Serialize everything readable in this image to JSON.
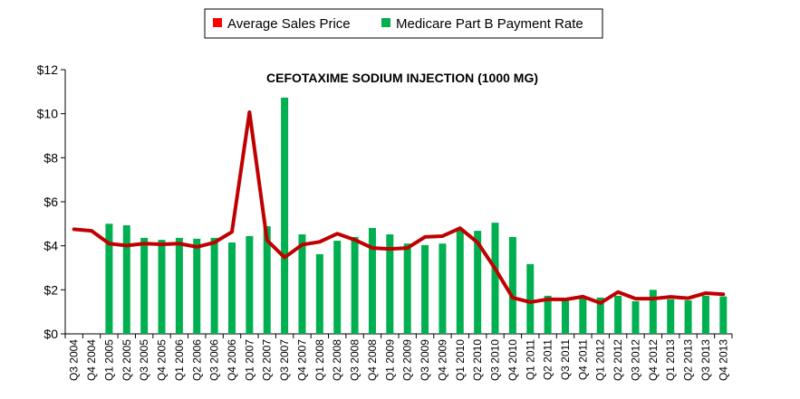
{
  "chart_data": {
    "type": "bar+line",
    "title": "CEFOTAXIME SODIUM INJECTION (1000 MG)",
    "xlabel": "",
    "ylabel": "",
    "ylim": [
      0,
      12
    ],
    "yticks": [
      "$0",
      "$2",
      "$4",
      "$6",
      "$8",
      "$10",
      "$12"
    ],
    "grid": false,
    "legend_position": "top",
    "categories": [
      "Q3 2004",
      "Q4 2004",
      "Q1 2005",
      "Q2 2005",
      "Q3 2005",
      "Q4 2005",
      "Q1 2006",
      "Q2 2006",
      "Q3 2006",
      "Q4 2006",
      "Q1 2007",
      "Q2 2007",
      "Q3 2007",
      "Q4 2007",
      "Q1 2008",
      "Q2 2008",
      "Q3 2008",
      "Q4 2008",
      "Q1 2009",
      "Q2 2009",
      "Q3 2009",
      "Q4 2009",
      "Q1 2010",
      "Q2 2010",
      "Q3 2010",
      "Q4 2010",
      "Q1 2011",
      "Q2 2011",
      "Q3 2011",
      "Q4 2011",
      "Q1 2012",
      "Q2 2012",
      "Q3 2012",
      "Q4 2012",
      "Q1 2013",
      "Q2 2013",
      "Q3 2013",
      "Q4 2013"
    ],
    "series": [
      {
        "name": "Average Sales Price",
        "type": "line",
        "color": "#C00000",
        "values": [
          4.75,
          4.68,
          4.1,
          4.01,
          4.1,
          4.07,
          4.1,
          3.95,
          4.15,
          4.63,
          10.07,
          4.25,
          3.47,
          4.05,
          4.18,
          4.55,
          4.27,
          3.9,
          3.86,
          3.9,
          4.4,
          4.44,
          4.8,
          4.15,
          2.96,
          1.64,
          1.44,
          1.57,
          1.56,
          1.69,
          1.4,
          1.9,
          1.6,
          1.6,
          1.68,
          1.62,
          1.85,
          1.8
        ]
      },
      {
        "name": "Medicare Part B Payment Rate",
        "type": "bar",
        "color": "#00B050",
        "values": [
          null,
          null,
          5.0,
          4.93,
          4.36,
          4.27,
          4.36,
          4.32,
          4.36,
          4.15,
          4.44,
          4.89,
          10.73,
          4.52,
          3.62,
          4.23,
          4.4,
          4.81,
          4.52,
          4.1,
          4.03,
          4.1,
          4.77,
          4.68,
          5.05,
          4.4,
          3.17,
          1.73,
          1.55,
          1.7,
          1.65,
          1.73,
          1.48,
          2.0,
          1.57,
          1.52,
          1.73,
          1.7
        ]
      }
    ]
  }
}
